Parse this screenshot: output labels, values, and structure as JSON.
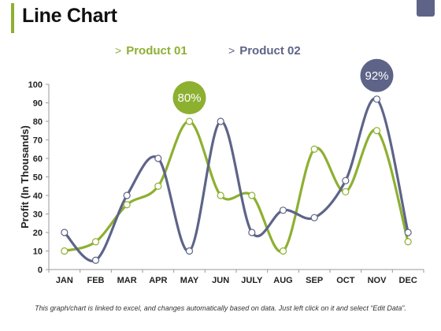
{
  "page": {
    "title": "Line Chart",
    "footnote": "This graph/chart is linked to excel, and changes automatically based on data. Just left click on it and select “Edit Data”."
  },
  "colors": {
    "product01": "#8db031",
    "product02": "#5e6488",
    "accent_bar": "#8db031",
    "corner_tab": "#5e6488"
  },
  "legend": {
    "marker": ">",
    "items": [
      {
        "label": "Product 01",
        "color": "#8db031"
      },
      {
        "label": "Product 02",
        "color": "#5e6488"
      }
    ]
  },
  "chart_data": {
    "type": "line",
    "title": "",
    "xlabel": "",
    "ylabel": "Profit (In Thousands)",
    "categories": [
      "JAN",
      "FEB",
      "MAR",
      "APR",
      "MAY",
      "JUN",
      "JULY",
      "AUG",
      "SEP",
      "OCT",
      "NOV",
      "DEC"
    ],
    "ylim": [
      0,
      100
    ],
    "yticks": [
      0,
      10,
      20,
      30,
      40,
      50,
      60,
      70,
      80,
      90,
      100
    ],
    "grid": false,
    "legend_position": "top",
    "series": [
      {
        "name": "Product 01",
        "color": "#8db031",
        "values": [
          10,
          15,
          35,
          45,
          80,
          40,
          40,
          10,
          65,
          42,
          75,
          15
        ]
      },
      {
        "name": "Product 02",
        "color": "#5e6488",
        "values": [
          20,
          5,
          40,
          60,
          10,
          80,
          20,
          32,
          28,
          48,
          92,
          20
        ]
      }
    ],
    "annotations": [
      {
        "text": "80%",
        "category": "MAY",
        "series": "Product 01",
        "color": "#8db031"
      },
      {
        "text": "92%",
        "category": "NOV",
        "series": "Product 02",
        "color": "#5e6488"
      }
    ]
  }
}
